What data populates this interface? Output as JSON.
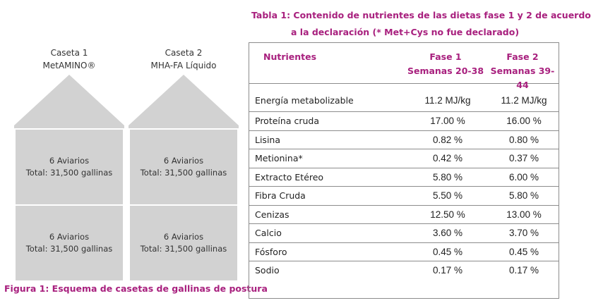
{
  "figure": {
    "houses": [
      {
        "name": "Caseta 1",
        "product": "MetAMINO®",
        "blocks": [
          {
            "aviarios": "6 Aviarios",
            "total": "Total: 31,500 gallinas"
          },
          {
            "aviarios": "6 Aviarios",
            "total": "Total: 31,500 gallinas"
          }
        ]
      },
      {
        "name": "Caseta 2",
        "product": "MHA-FA Líquido",
        "blocks": [
          {
            "aviarios": "6 Aviarios",
            "total": "Total: 31,500 gallinas"
          },
          {
            "aviarios": "6 Aviarios",
            "total": "Total: 31,500 gallinas"
          }
        ]
      }
    ],
    "caption": "Figura 1: Esquema de casetas de gallinas de postura",
    "roof_color": "#d2d2d2"
  },
  "table": {
    "caption_line1": "Tabla 1: Contenido de nutrientes de las dietas fase 1 y 2 de acuerdo",
    "caption_line2": "a la declaración (* Met+Cys no fue declarado)",
    "headers": {
      "nutrientes": "Nutrientes",
      "fase1_line1": "Fase 1",
      "fase1_line2": "Semanas 20-38",
      "fase2_line1": "Fase 2",
      "fase2_line2": "Semanas 39-44"
    },
    "rows": [
      {
        "name": "Energía metabolizable",
        "fase1": "11.2 MJ/kg",
        "fase2": "11.2 MJ/kg"
      },
      {
        "name": "Proteína cruda",
        "fase1": "17.00 %",
        "fase2": "16.00 %"
      },
      {
        "name": "Lisina",
        "fase1": "0.82 %",
        "fase2": "0.80 %"
      },
      {
        "name": "Metionina*",
        "fase1": "0.42 %",
        "fase2": "0.37 %"
      },
      {
        "name": "Extracto Etéreo",
        "fase1": "5.80 %",
        "fase2": "6.00 %"
      },
      {
        "name": "Fibra Cruda",
        "fase1": "5.50 %",
        "fase2": "5.80 %"
      },
      {
        "name": "Cenizas",
        "fase1": "12.50 %",
        "fase2": "13.00 %"
      },
      {
        "name": "Calcio",
        "fase1": "3.60 %",
        "fase2": "3.70 %"
      },
      {
        "name": "Fósforo",
        "fase1": "0.45 %",
        "fase2": "0.45 %"
      },
      {
        "name": "Sodio",
        "fase1": "0.17 %",
        "fase2": "0.17 %"
      }
    ],
    "accent_color": "#a8207e"
  }
}
